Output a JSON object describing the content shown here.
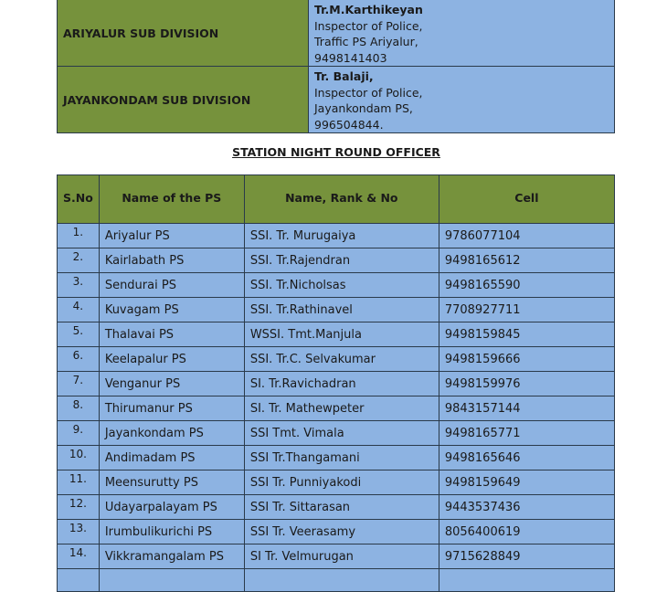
{
  "sub_divisions": [
    {
      "division": "ARIYALUR SUB DIVISION",
      "officer_name": "Tr.M.Karthikeyan",
      "lines": [
        "Inspector of Police,",
        "Traffic PS Ariyalur,",
        "9498141403"
      ]
    },
    {
      "division": "JAYANKONDAM SUB DIVISION",
      "officer_name": "Tr. Balaji,",
      "lines": [
        "Inspector of Police,",
        "Jayankondam PS,",
        "996504844."
      ]
    }
  ],
  "section_title": "STATION NIGHT ROUND OFFICER",
  "table": {
    "headers": [
      "S.No",
      "Name of the PS",
      "Name, Rank & No",
      "Cell"
    ],
    "rows": [
      [
        "1.",
        "Ariyalur  PS",
        "SSI. Tr. Murugaiya",
        "9786077104"
      ],
      [
        "2.",
        "Kairlabath PS",
        "SSI. Tr.Rajendran",
        "9498165612"
      ],
      [
        "3.",
        "Sendurai PS",
        "SSI. Tr.Nicholsas",
        "9498165590"
      ],
      [
        "4.",
        "Kuvagam PS",
        "SSI. Tr.Rathinavel",
        "7708927711"
      ],
      [
        "5.",
        "Thalavai  PS",
        "WSSI. Tmt.Manjula",
        "9498159845"
      ],
      [
        "6.",
        "Keelapalur PS",
        "SSI. Tr.C. Selvakumar",
        "9498159666"
      ],
      [
        "7.",
        "Venganur PS",
        "SI.  Tr.Ravichadran",
        "9498159976"
      ],
      [
        "8.",
        "Thirumanur PS",
        "SI. Tr. Mathewpeter",
        "9843157144"
      ],
      [
        "9.",
        "Jayankondam PS",
        "SSI Tmt. Vimala",
        "9498165771"
      ],
      [
        "10.",
        "Andimadam PS",
        "SSI Tr.Thangamani",
        "9498165646"
      ],
      [
        "11.",
        "Meensurutty PS",
        "SSI Tr. Punniyakodi",
        "9498159649"
      ],
      [
        "12.",
        "Udayarpalayam PS",
        "SSI Tr. Sittarasan",
        "9443537436"
      ],
      [
        "13.",
        "Irumbulikurichi PS",
        "SSI Tr. Veerasamy",
        "8056400619"
      ],
      [
        "14.",
        "Vikkramangalam PS",
        "SI Tr. Velmurugan",
        "9715628849"
      ]
    ]
  },
  "colors": {
    "header_green": "#76923c",
    "cell_blue": "#8db3e2"
  }
}
